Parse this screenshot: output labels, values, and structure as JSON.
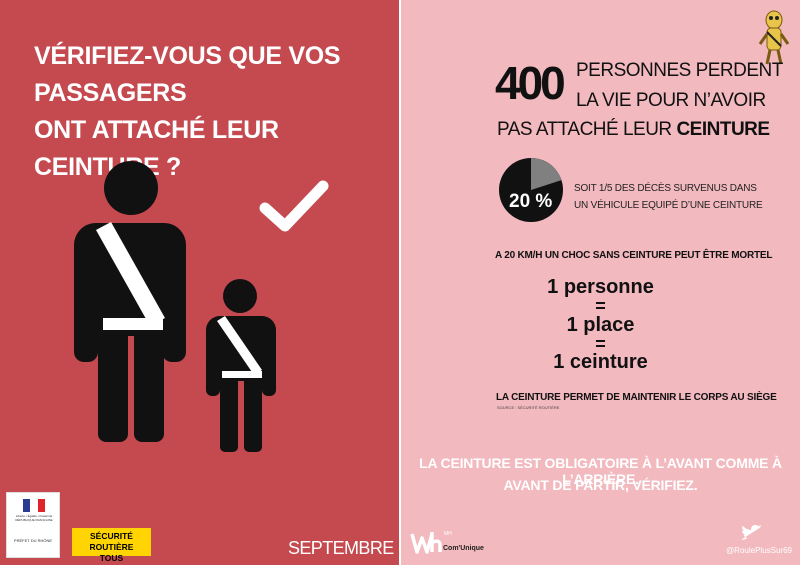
{
  "left": {
    "question_line1": "VÉRIFIEZ-VOUS QUE VOS PASSAGERS",
    "question_line2": "ONT ATTACHÉ LEUR CEINTURE ?",
    "month": "SEPTEMBRE",
    "prefecture": {
      "republic": "Liberté • Égalité • Fraternité RÉPUBLIQUE FRANÇAISE",
      "prefet": "PRÉFET DU RHÔNE"
    },
    "securite_line1": "SÉCURITÉ ROUTIÈRE",
    "securite_line2": "TOUS RESPONSABLES",
    "icons": {
      "adult": "adult-seatbelt-icon",
      "child": "child-seatbelt-icon",
      "check": "checkmark-icon"
    }
  },
  "right": {
    "big_number": "400",
    "headline_line1": "PERSONNES PERDENT",
    "headline_line2": "LA VIE POUR N’AVOIR",
    "headline_line3_pre": "PAS ATTACHÉ LEUR",
    "headline_line3_bold": "CEINTURE",
    "pie_percent": "20 %",
    "pie_fraction": 0.2,
    "soit_line1": "SOIT 1/5 DES DÉCÈS SURVENUS DANS",
    "soit_line2": "UN VÉHICULE EQUIPÉ D’UNE CEINTURE",
    "choc": "A 20 KM/H UN CHOC SANS CEINTURE PEUT ÊTRE MORTEL",
    "eq1": "1 personne",
    "eq_sign": "=",
    "eq2": "1 place",
    "eq3": "1 ceinture",
    "maintien": "LA CEINTURE PERMET DE MAINTENIR LE CORPS AU SIÈGE",
    "source": "SOURCE : SÉCURITÉ ROUTIÈRE",
    "oblig_line1": "LA CEINTURE EST OBLIGATOIRE À L’AVANT COMME À L’ARRIÈRE.",
    "oblig_line2": "AVANT DE PARTIR, VÉRIFIEZ.",
    "logo_mh": "MH",
    "logo_com": "Com'Unique",
    "handle": "@RoulePlusSur69",
    "icons": {
      "mascot": "mascot-icon",
      "twitter": "twitter-bird-icon",
      "logo": "wh-logo-icon"
    }
  },
  "colors": {
    "left_bg": "#c44a50",
    "right_bg": "#f2b9bf",
    "pie_dark": "#111111",
    "pie_light": "#808080",
    "yellow": "#ffd400"
  }
}
